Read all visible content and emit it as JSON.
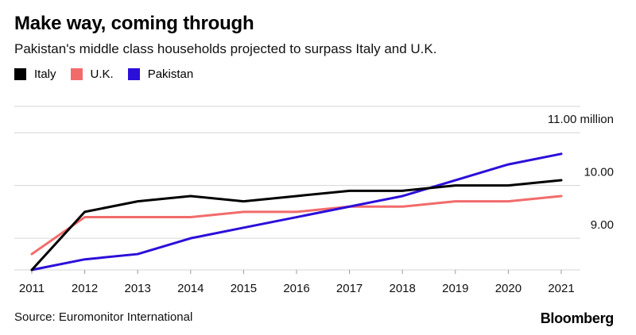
{
  "title": "Make way, coming through",
  "subtitle": "Pakistan's middle class households projected to surpass Italy and U.K.",
  "source": "Source: Euromonitor International",
  "brand": "Bloomberg",
  "chart_data": {
    "type": "line",
    "title": "Make way, coming through",
    "subtitle": "Pakistan's middle class households projected to surpass Italy and U.K.",
    "xlabel": "",
    "ylabel": "",
    "x": [
      "2011",
      "2012",
      "2013",
      "2014",
      "2015",
      "2016",
      "2017",
      "2018",
      "2019",
      "2020",
      "2021"
    ],
    "ylim": [
      8.4,
      11.5
    ],
    "yticks": [
      9.0,
      10.0,
      11.0
    ],
    "ytick_labels": [
      "9.00",
      "10.00",
      "11.00 million"
    ],
    "legend_position": "top-left",
    "grid": true,
    "series": [
      {
        "name": "Italy",
        "color": "#000000",
        "values": [
          8.4,
          9.5,
          9.7,
          9.8,
          9.7,
          9.8,
          9.9,
          9.9,
          10.0,
          10.0,
          10.1
        ]
      },
      {
        "name": "U.K.",
        "color": "#f26b6b",
        "values": [
          8.7,
          9.4,
          9.4,
          9.4,
          9.5,
          9.5,
          9.6,
          9.6,
          9.7,
          9.7,
          9.8
        ]
      },
      {
        "name": "Pakistan",
        "color": "#2b0fd9",
        "values": [
          8.4,
          8.6,
          8.7,
          9.0,
          9.2,
          9.4,
          9.6,
          9.8,
          10.1,
          10.4,
          10.6
        ]
      }
    ]
  }
}
